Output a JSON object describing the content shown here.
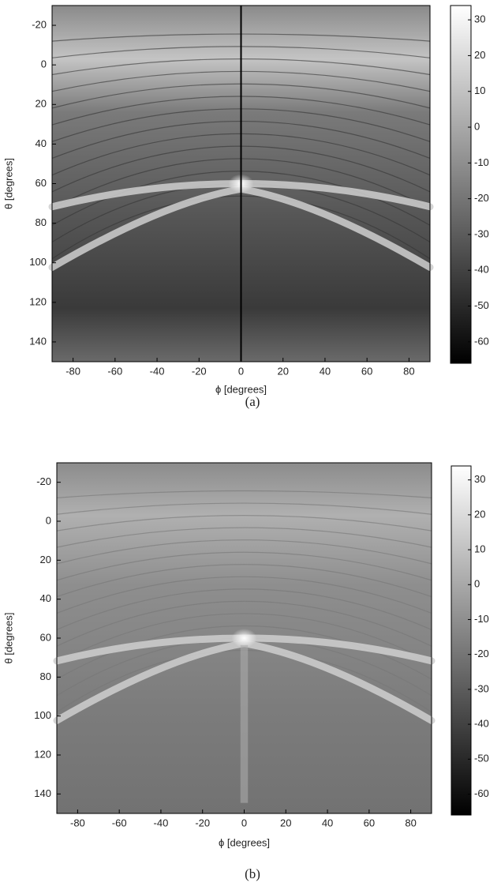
{
  "chart_data": [
    {
      "type": "heatmap",
      "caption": "(a)",
      "xlabel": "ϕ [degrees]",
      "ylabel": "θ [degrees]",
      "xlim": [
        -90,
        90
      ],
      "ylim": [
        -30,
        150
      ],
      "xticks": [
        -80,
        -60,
        -40,
        -20,
        0,
        20,
        40,
        60,
        80
      ],
      "yticks": [
        -20,
        0,
        20,
        40,
        60,
        80,
        100,
        120,
        140
      ],
      "clim": [
        -66,
        34
      ],
      "cticks": [
        30,
        20,
        10,
        0,
        -10,
        -20,
        -30,
        -40,
        -50,
        -60
      ]
    },
    {
      "type": "heatmap",
      "caption": "(b)",
      "xlabel": "ϕ [degrees]",
      "ylabel": "θ [degrees]",
      "xlim": [
        -90,
        90
      ],
      "ylim": [
        -30,
        150
      ],
      "xticks": [
        -80,
        -60,
        -40,
        -20,
        0,
        20,
        40,
        60,
        80
      ],
      "yticks": [
        -20,
        0,
        20,
        40,
        60,
        80,
        100,
        120,
        140
      ],
      "clim": [
        -66,
        34
      ],
      "cticks": [
        30,
        20,
        10,
        0,
        -10,
        -20,
        -30,
        -40,
        -50,
        -60
      ]
    }
  ]
}
